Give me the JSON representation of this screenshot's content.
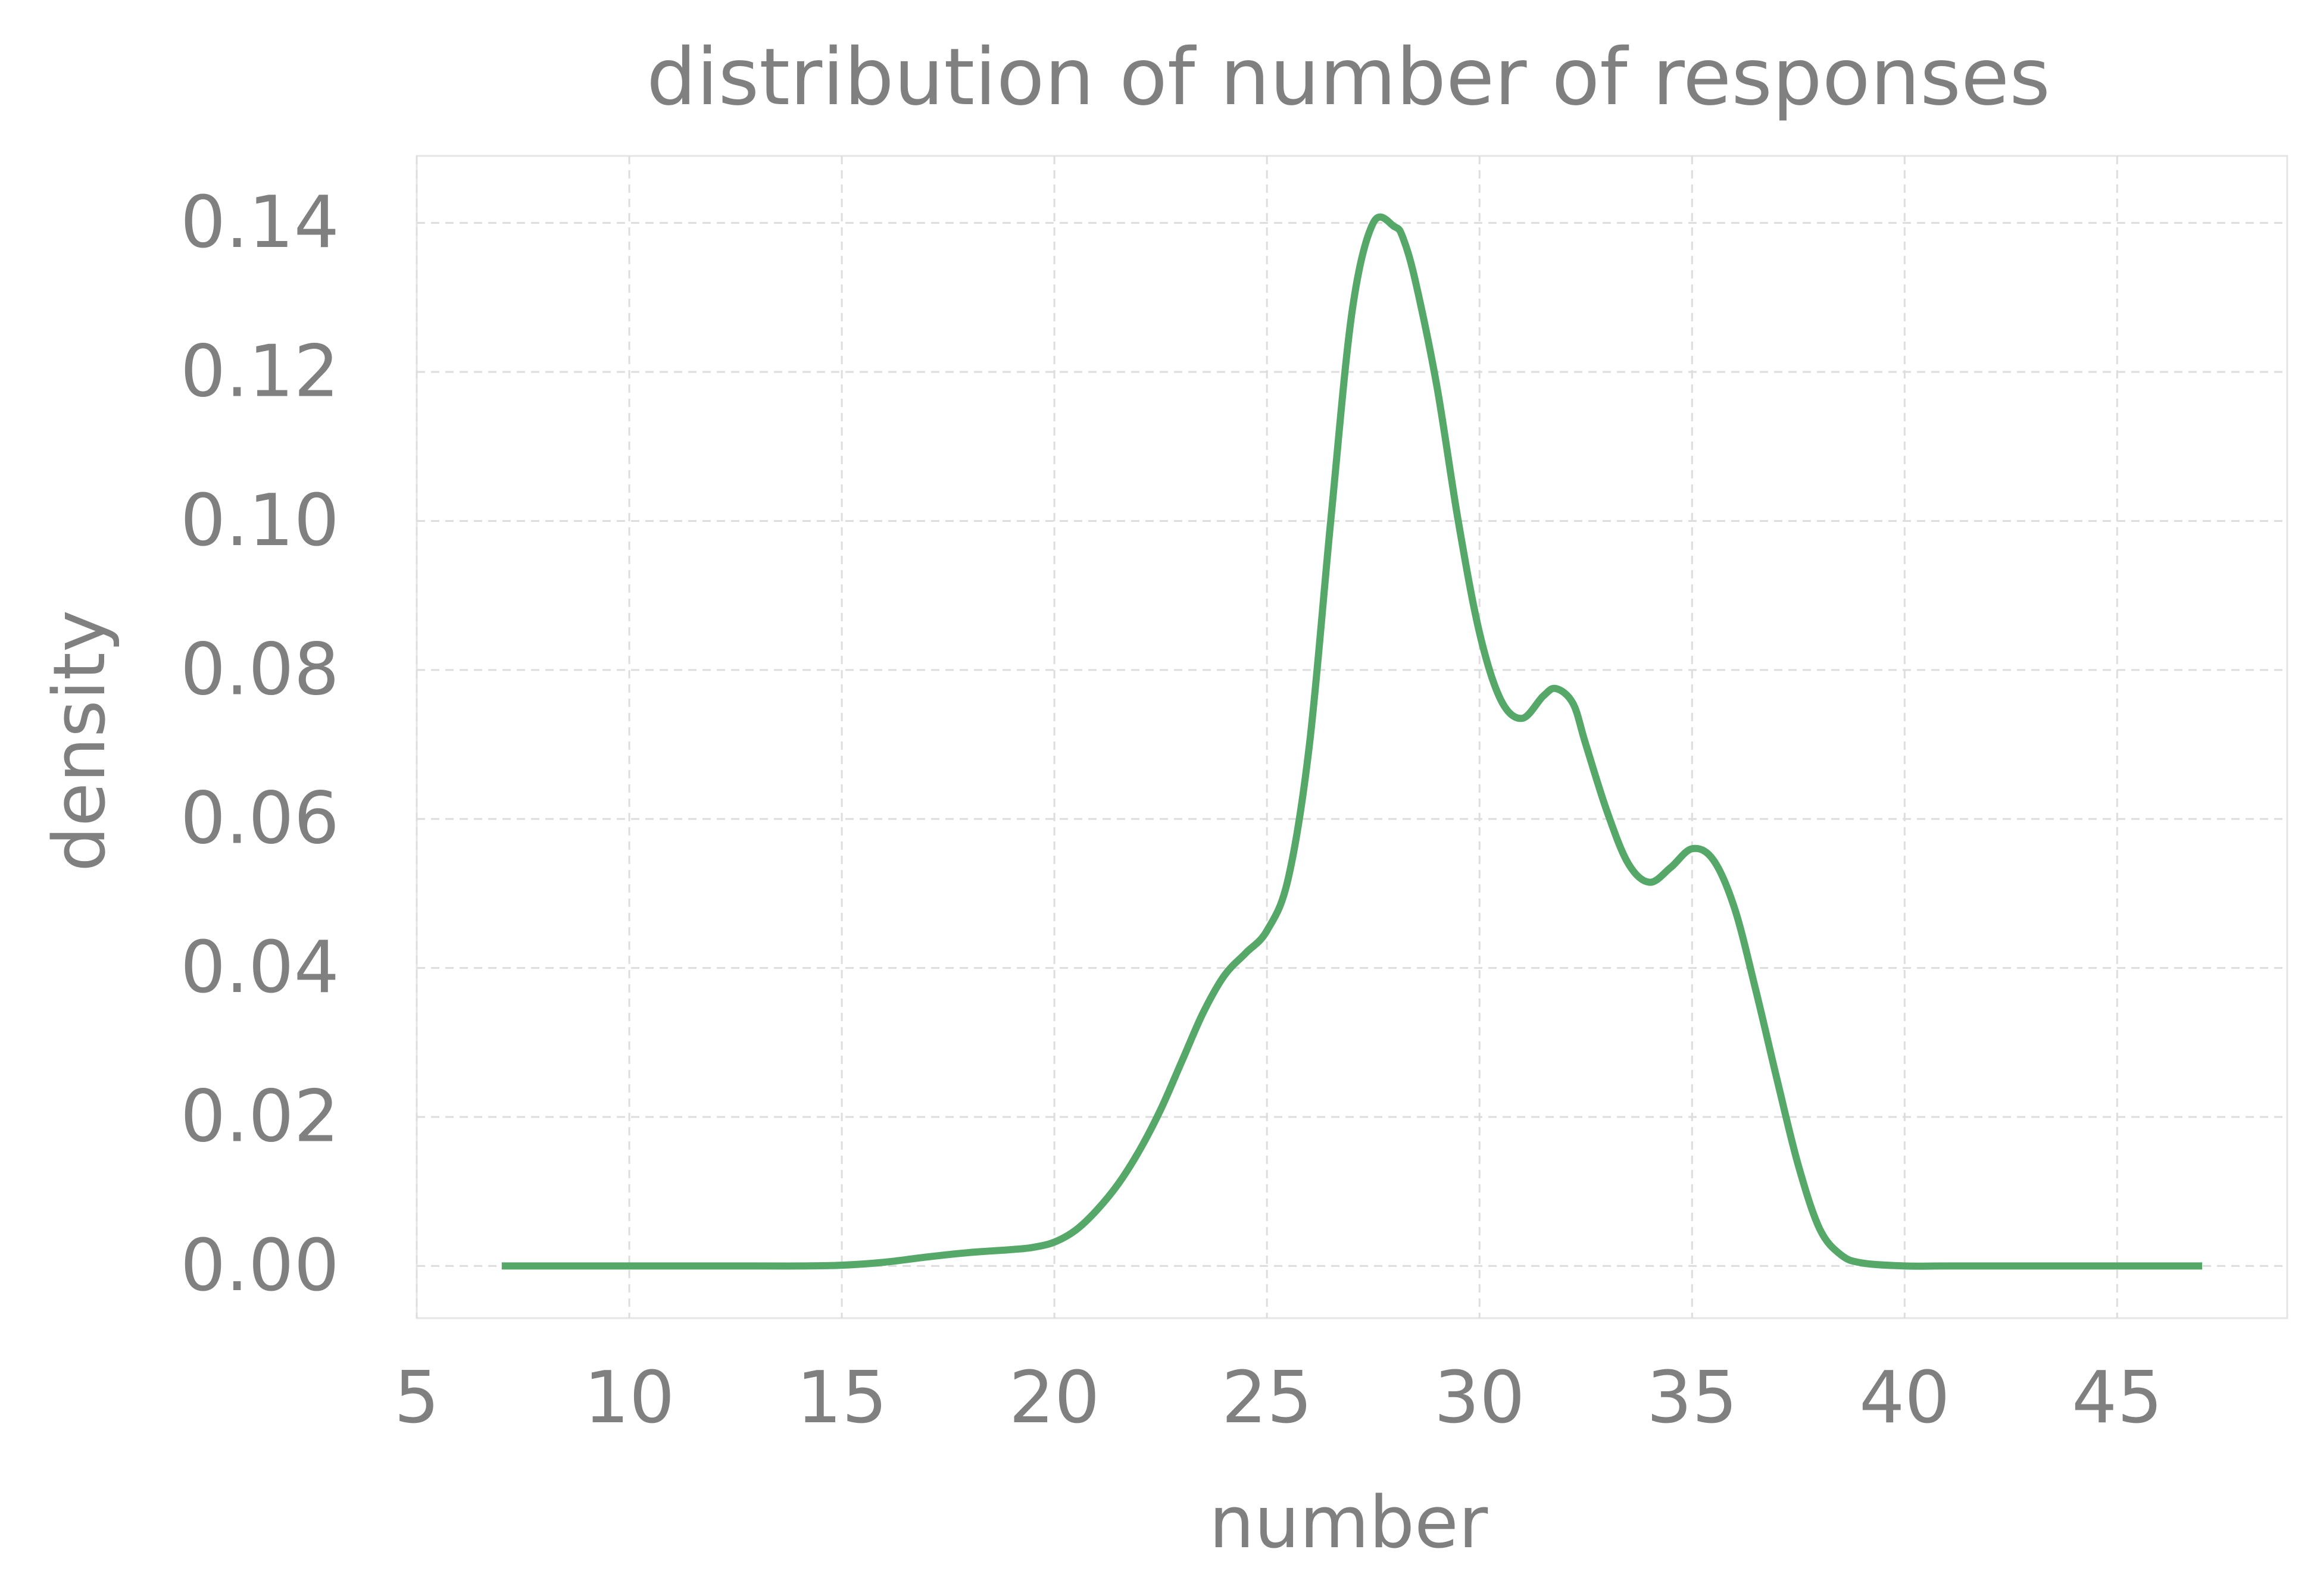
{
  "chart_data": {
    "type": "line",
    "title": "distribution of number of responses",
    "xlabel": "number",
    "ylabel": "density",
    "xlim": [
      5,
      49
    ],
    "ylim": [
      -0.007,
      0.149
    ],
    "xticks": [
      5,
      10,
      15,
      20,
      25,
      30,
      35,
      40,
      45
    ],
    "xtick_labels": [
      "5",
      "10",
      "15",
      "20",
      "25",
      "30",
      "35",
      "40",
      "45"
    ],
    "yticks": [
      0.0,
      0.02,
      0.04,
      0.06,
      0.08,
      0.1,
      0.12,
      0.14
    ],
    "ytick_labels": [
      "0.00",
      "0.02",
      "0.04",
      "0.06",
      "0.08",
      "0.10",
      "0.12",
      "0.14"
    ],
    "grid": true,
    "legend": "none",
    "series": [
      {
        "color": "#55a868",
        "x": [
          7,
          10,
          13,
          14,
          15,
          16,
          17,
          18,
          19,
          19.5,
          20,
          20.5,
          21,
          21.5,
          22,
          22.5,
          23,
          23.5,
          24,
          24.5,
          25,
          25.5,
          26,
          26.5,
          27,
          27.5,
          28,
          28.2,
          28.5,
          29,
          29.5,
          30,
          30.5,
          31,
          31.5,
          31.8,
          32.2,
          32.5,
          33,
          33.5,
          34,
          34.5,
          35,
          35.5,
          36,
          36.5,
          37,
          37.5,
          38,
          38.5,
          39,
          40,
          41,
          43,
          47
        ],
        "y": [
          0.0,
          0.0,
          0.0,
          0.0,
          0.0001,
          0.0005,
          0.0012,
          0.0018,
          0.0022,
          0.0025,
          0.0032,
          0.0048,
          0.0075,
          0.011,
          0.0155,
          0.021,
          0.0275,
          0.034,
          0.039,
          0.042,
          0.045,
          0.052,
          0.07,
          0.1,
          0.128,
          0.14,
          0.1395,
          0.138,
          0.132,
          0.118,
          0.1,
          0.085,
          0.076,
          0.0735,
          0.0765,
          0.0775,
          0.0755,
          0.07,
          0.061,
          0.054,
          0.0515,
          0.0535,
          0.056,
          0.0545,
          0.048,
          0.037,
          0.025,
          0.0135,
          0.005,
          0.0015,
          0.0004,
          0.0,
          0.0,
          0.0,
          0.0
        ]
      }
    ]
  }
}
